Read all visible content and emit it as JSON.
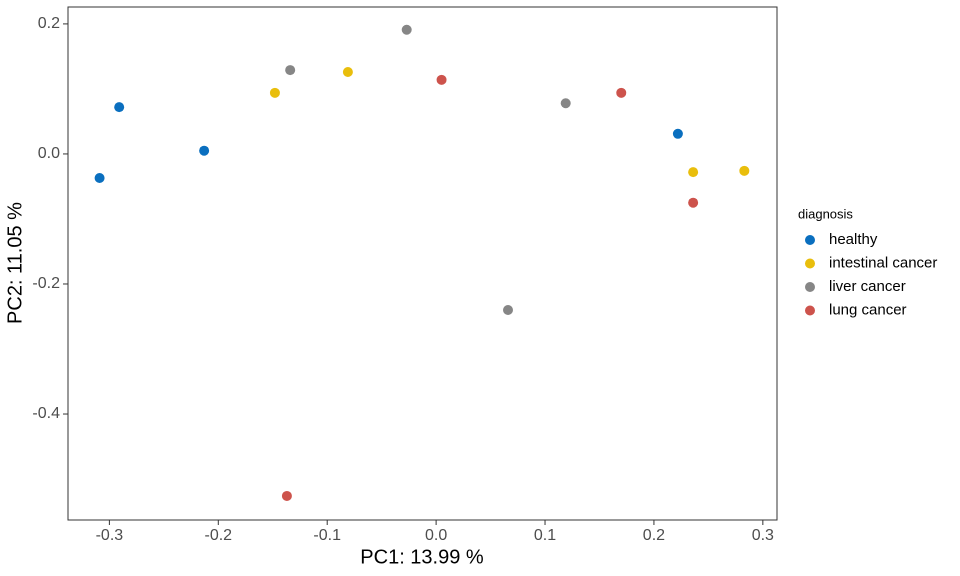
{
  "chart_data": {
    "type": "scatter",
    "x_label": "PC1: 13.99 %",
    "y_label": "PC2: 11.05 %",
    "legend_title": "diagnosis",
    "legend": "right",
    "grid": false,
    "xlim": [
      -0.338,
      0.313
    ],
    "ylim": [
      -0.563,
      0.226
    ],
    "xticks": [
      -0.3,
      -0.2,
      -0.1,
      {
        "value": 0,
        "label": "0.0"
      },
      0.1,
      0.2,
      0.3
    ],
    "yticks": [
      -0.4,
      -0.2,
      {
        "value": 0,
        "label": "0.0"
      },
      0.2
    ],
    "series": [
      {
        "name": "healthy",
        "color": "#0a6fbf",
        "x": [
          -0.309,
          -0.291,
          -0.213,
          0.222
        ],
        "values": [
          -0.037,
          0.072,
          0.005,
          0.031
        ]
      },
      {
        "name": "intestinal cancer",
        "color": "#e9be0c",
        "x": [
          -0.148,
          -0.081,
          0.236,
          0.283
        ],
        "values": [
          0.094,
          0.126,
          -0.028,
          -0.026
        ]
      },
      {
        "name": "liver cancer",
        "color": "#868686",
        "x": [
          -0.134,
          -0.027,
          0.119,
          0.066
        ],
        "values": [
          0.129,
          0.191,
          0.078,
          -0.24
        ]
      },
      {
        "name": "lung cancer",
        "color": "#cd534c",
        "x": [
          0.005,
          0.17,
          0.236,
          -0.137
        ],
        "values": [
          0.114,
          0.094,
          -0.075,
          -0.526
        ]
      }
    ]
  }
}
